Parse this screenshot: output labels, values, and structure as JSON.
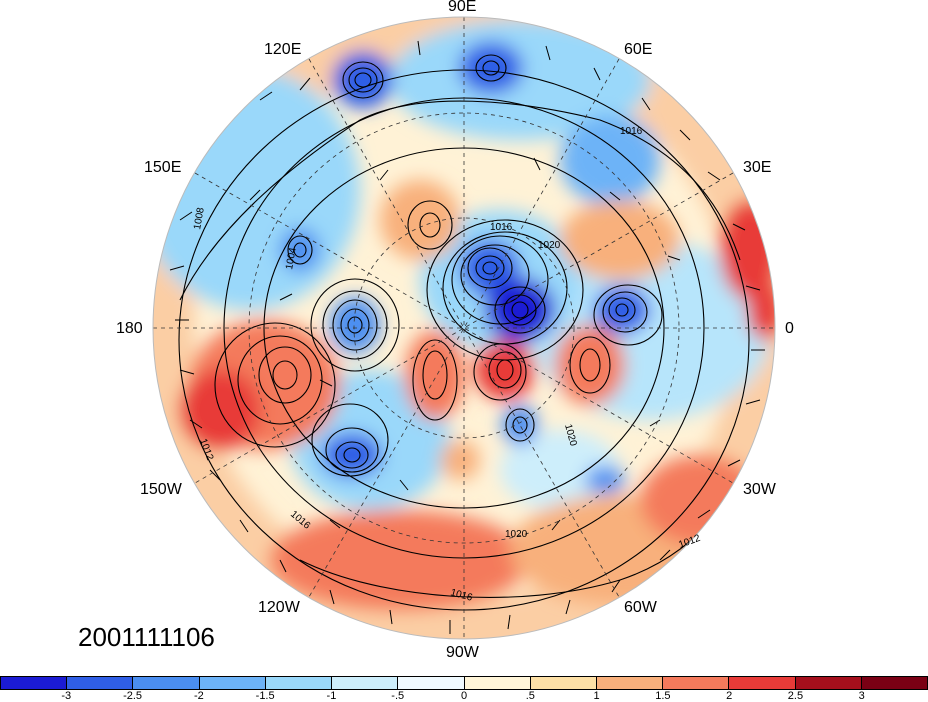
{
  "longitude_labels": [
    "90E",
    "60E",
    "30E",
    "0",
    "30W",
    "60W",
    "90W",
    "120W",
    "150W",
    "180",
    "150E",
    "120E"
  ],
  "date_stamp": "2001111106",
  "contour_labels": [
    "1016",
    "1020",
    "1012",
    "1008",
    "1004"
  ],
  "colorbar": {
    "ticks": [
      "-3",
      "-2.5",
      "-2",
      "-1.5",
      "-1",
      "-.5",
      "0",
      ".5",
      "1",
      "1.5",
      "2",
      "2.5",
      "3"
    ],
    "colors": [
      "#1b1bd4",
      "#2f5ee6",
      "#4b8ef0",
      "#6db3f7",
      "#9ad8fa",
      "#cdeefb",
      "#f0faff",
      "#fff5d8",
      "#fde0a6",
      "#f8b07c",
      "#f47a5c",
      "#e83b38",
      "#a50f1c",
      "#7a0014"
    ]
  },
  "chart_data": {
    "type": "heatmap",
    "projection": "polar stereographic, north pole centered",
    "colorbar_min": -3,
    "colorbar_max": 3,
    "colorbar_step": 0.5,
    "contour_levels": [
      1004,
      1008,
      1012,
      1016,
      1020
    ],
    "vectors": "wind barbs",
    "grid": "dashed"
  }
}
